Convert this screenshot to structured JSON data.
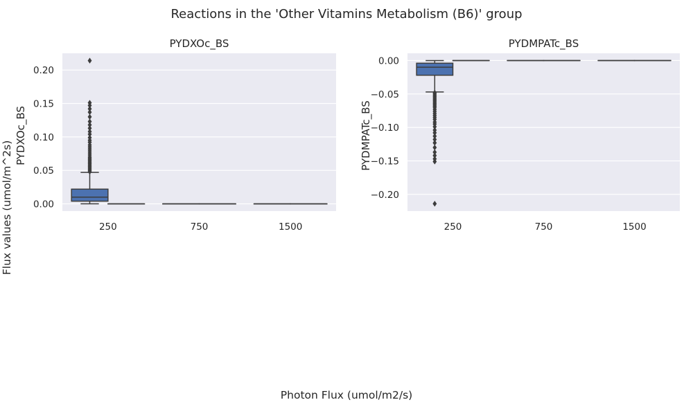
{
  "figure": {
    "suptitle": "Reactions in the 'Other Vitamins Metabolism (B6)' group",
    "supylabel": "Flux values (umol/m^2s)",
    "supxlabel": "Photon Flux (umol/m2/s)"
  },
  "colors": {
    "panel_bg": "#eaeaf2",
    "grid": "#ffffff",
    "box_fill": "#4c72b0",
    "box_line": "#3d3d3d",
    "text": "#262626"
  },
  "chart_data": [
    {
      "type": "box",
      "title": "PYDXOc_BS",
      "ylabel": "PYDXOc_BS",
      "xlabel": "",
      "categories": [
        "250",
        "750",
        "1500"
      ],
      "ylim": [
        -0.0108,
        0.225
      ],
      "yticks": [
        0.0,
        0.05,
        0.1,
        0.15,
        0.2
      ],
      "ytick_labels": [
        "0.00",
        "0.05",
        "0.10",
        "0.15",
        "0.20"
      ],
      "grid": true,
      "boxes": [
        {
          "category": "250",
          "slot": 0,
          "q1": 0.004,
          "median": 0.01,
          "q3": 0.022,
          "whisker_low": 0.0,
          "whisker_high": 0.047,
          "outliers": [
            0.048,
            0.05,
            0.052,
            0.054,
            0.056,
            0.058,
            0.06,
            0.062,
            0.064,
            0.066,
            0.068,
            0.07,
            0.073,
            0.076,
            0.079,
            0.082,
            0.085,
            0.088,
            0.092,
            0.095,
            0.099,
            0.104,
            0.108,
            0.113,
            0.118,
            0.123,
            0.13,
            0.137,
            0.142,
            0.147,
            0.151,
            0.214
          ]
        },
        {
          "category": "250",
          "slot": 1,
          "q1": 0.0,
          "median": 0.0,
          "q3": 0.0,
          "whisker_low": 0.0,
          "whisker_high": 0.0,
          "outliers": []
        },
        {
          "category": "750",
          "slot": 0,
          "q1": 0.0,
          "median": 0.0,
          "q3": 0.0,
          "whisker_low": 0.0,
          "whisker_high": 0.0,
          "outliers": []
        },
        {
          "category": "750",
          "slot": 1,
          "q1": 0.0,
          "median": 0.0,
          "q3": 0.0,
          "whisker_low": 0.0,
          "whisker_high": 0.0,
          "outliers": []
        },
        {
          "category": "1500",
          "slot": 0,
          "q1": 0.0,
          "median": 0.0,
          "q3": 0.0,
          "whisker_low": 0.0,
          "whisker_high": 0.0,
          "outliers": []
        },
        {
          "category": "1500",
          "slot": 1,
          "q1": 0.0,
          "median": 0.0,
          "q3": 0.0,
          "whisker_low": 0.0,
          "whisker_high": 0.0,
          "outliers": []
        }
      ]
    },
    {
      "type": "box",
      "title": "PYDMPATc_BS",
      "ylabel": "PYDMPATc_BS",
      "xlabel": "",
      "categories": [
        "250",
        "750",
        "1500"
      ],
      "ylim": [
        -0.225,
        0.0108
      ],
      "yticks": [
        0.0,
        -0.05,
        -0.1,
        -0.15,
        -0.2
      ],
      "ytick_labels": [
        "0.00",
        "−0.05",
        "−0.10",
        "−0.15",
        "−0.20"
      ],
      "grid": true,
      "boxes": [
        {
          "category": "250",
          "slot": 0,
          "q1": -0.022,
          "median": -0.01,
          "q3": -0.004,
          "whisker_low": -0.047,
          "whisker_high": 0.0,
          "outliers": [
            -0.048,
            -0.05,
            -0.052,
            -0.054,
            -0.056,
            -0.058,
            -0.06,
            -0.062,
            -0.064,
            -0.066,
            -0.068,
            -0.07,
            -0.073,
            -0.076,
            -0.079,
            -0.082,
            -0.085,
            -0.088,
            -0.092,
            -0.095,
            -0.099,
            -0.104,
            -0.108,
            -0.113,
            -0.118,
            -0.123,
            -0.13,
            -0.137,
            -0.142,
            -0.147,
            -0.151,
            -0.214
          ]
        },
        {
          "category": "250",
          "slot": 1,
          "q1": 0.0,
          "median": 0.0,
          "q3": 0.0,
          "whisker_low": 0.0,
          "whisker_high": 0.0,
          "outliers": []
        },
        {
          "category": "750",
          "slot": 0,
          "q1": 0.0,
          "median": 0.0,
          "q3": 0.0,
          "whisker_low": 0.0,
          "whisker_high": 0.0,
          "outliers": []
        },
        {
          "category": "750",
          "slot": 1,
          "q1": 0.0,
          "median": 0.0,
          "q3": 0.0,
          "whisker_low": 0.0,
          "whisker_high": 0.0,
          "outliers": []
        },
        {
          "category": "1500",
          "slot": 0,
          "q1": 0.0,
          "median": 0.0,
          "q3": 0.0,
          "whisker_low": 0.0,
          "whisker_high": 0.0,
          "outliers": []
        },
        {
          "category": "1500",
          "slot": 1,
          "q1": 0.0,
          "median": 0.0,
          "q3": 0.0,
          "whisker_low": 0.0,
          "whisker_high": 0.0,
          "outliers": []
        }
      ]
    }
  ]
}
